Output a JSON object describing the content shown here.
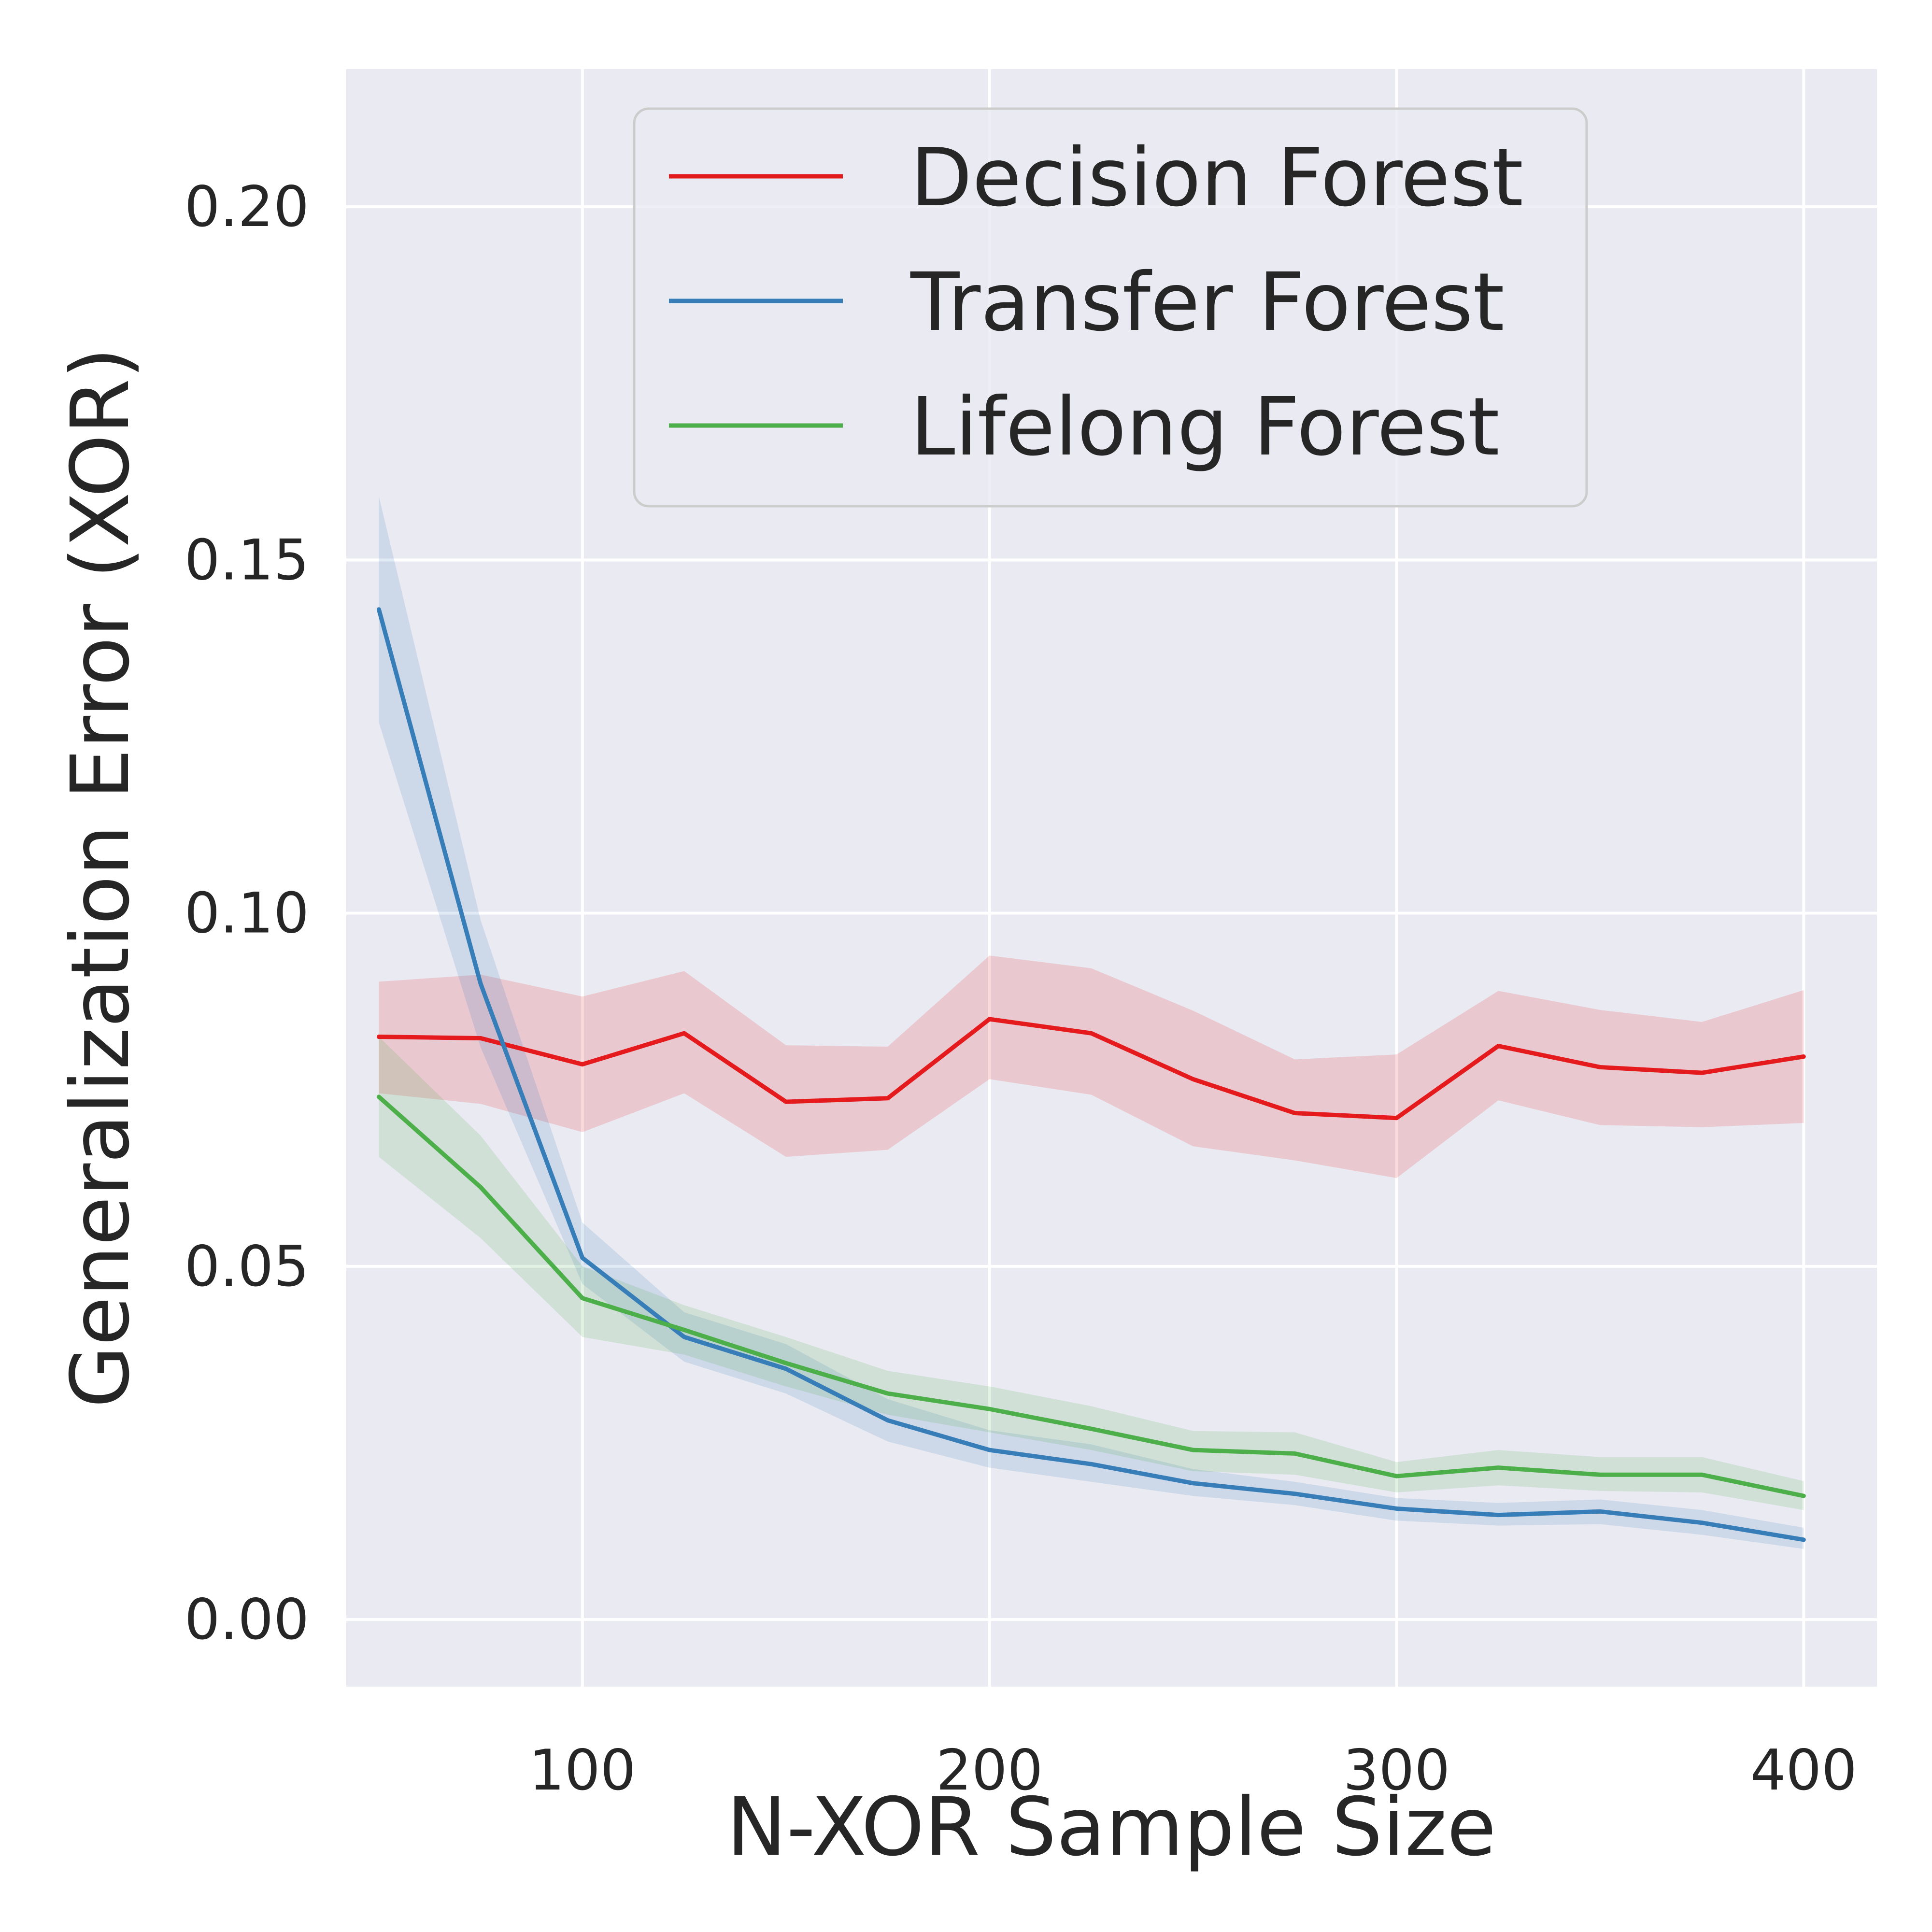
{
  "chart_data": {
    "type": "line",
    "xlabel": "N-XOR Sample Size",
    "ylabel": "Generalization Error (XOR)",
    "xlim": [
      42,
      418
    ],
    "ylim": [
      -0.0095,
      0.2195
    ],
    "xticks": [
      100,
      200,
      300,
      400
    ],
    "xtick_labels": [
      "100",
      "200",
      "300",
      "400"
    ],
    "yticks": [
      0.0,
      0.05,
      0.1,
      0.15,
      0.2
    ],
    "ytick_labels": [
      "0.00",
      "0.05",
      "0.10",
      "0.15",
      "0.20"
    ],
    "grid": true,
    "legend_position": "top-center",
    "x": [
      50,
      75,
      100,
      125,
      150,
      175,
      200,
      225,
      250,
      275,
      300,
      325,
      350,
      375,
      400
    ],
    "series": [
      {
        "name": "Decision Forest",
        "color": "#e41a1c",
        "values": [
          0.0825,
          0.0823,
          0.0786,
          0.083,
          0.0733,
          0.0738,
          0.085,
          0.083,
          0.0765,
          0.0717,
          0.071,
          0.0812,
          0.0782,
          0.0774,
          0.0797
        ],
        "lower": [
          0.0745,
          0.073,
          0.069,
          0.0745,
          0.0655,
          0.0665,
          0.0765,
          0.0743,
          0.067,
          0.065,
          0.0625,
          0.0735,
          0.07,
          0.0697,
          0.0703
        ],
        "upper": [
          0.0903,
          0.0913,
          0.0882,
          0.0918,
          0.0813,
          0.0811,
          0.094,
          0.0922,
          0.0862,
          0.0793,
          0.08,
          0.089,
          0.0863,
          0.0846,
          0.0891
        ]
      },
      {
        "name": "Transfer Forest",
        "color": "#377eb8",
        "values": [
          0.143,
          0.09,
          0.0512,
          0.04,
          0.0355,
          0.0282,
          0.024,
          0.022,
          0.0193,
          0.0178,
          0.0157,
          0.0148,
          0.0153,
          0.0137,
          0.0113
        ],
        "lower": [
          0.127,
          0.081,
          0.0475,
          0.0365,
          0.032,
          0.0252,
          0.0215,
          0.0195,
          0.0175,
          0.0162,
          0.014,
          0.0133,
          0.0135,
          0.012,
          0.01
        ],
        "upper": [
          0.159,
          0.099,
          0.0562,
          0.0435,
          0.039,
          0.0312,
          0.0268,
          0.0248,
          0.0213,
          0.0195,
          0.0172,
          0.0165,
          0.017,
          0.0155,
          0.013
        ]
      },
      {
        "name": "Lifelong Forest",
        "color": "#4daf4a",
        "values": [
          0.074,
          0.0612,
          0.0455,
          0.041,
          0.0363,
          0.032,
          0.0298,
          0.027,
          0.024,
          0.0235,
          0.0203,
          0.0215,
          0.0205,
          0.0205,
          0.0175
        ],
        "lower": [
          0.0655,
          0.054,
          0.04,
          0.0375,
          0.033,
          0.029,
          0.0265,
          0.024,
          0.021,
          0.0205,
          0.018,
          0.019,
          0.0182,
          0.018,
          0.0155
        ],
        "upper": [
          0.0825,
          0.0685,
          0.05,
          0.0445,
          0.04,
          0.0352,
          0.033,
          0.0302,
          0.0267,
          0.0265,
          0.0223,
          0.024,
          0.023,
          0.023,
          0.0196
        ]
      }
    ]
  }
}
